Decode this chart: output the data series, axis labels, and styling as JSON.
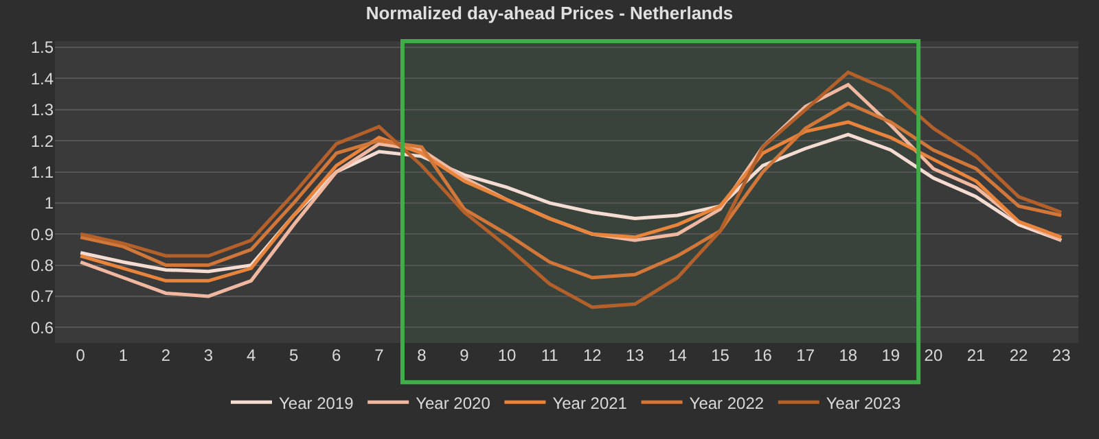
{
  "chart_data": {
    "type": "line",
    "title": "Normalized day-ahead Prices - Netherlands",
    "x": [
      0,
      1,
      2,
      3,
      4,
      5,
      6,
      7,
      8,
      9,
      10,
      11,
      12,
      13,
      14,
      15,
      16,
      17,
      18,
      19,
      20,
      21,
      22,
      23
    ],
    "xlim": [
      -0.6,
      23.4
    ],
    "xticks": [
      0,
      1,
      2,
      3,
      4,
      5,
      6,
      7,
      8,
      9,
      10,
      11,
      12,
      13,
      14,
      15,
      16,
      17,
      18,
      19,
      20,
      21,
      22,
      23
    ],
    "ylim": [
      0.55,
      1.52
    ],
    "yticks": [
      0.6,
      0.7,
      0.8,
      0.9,
      1,
      1.1,
      1.2,
      1.3,
      1.4,
      1.5
    ],
    "grid": "y",
    "legend": "bottom",
    "marker": "none",
    "line_style": "solid",
    "series": [
      {
        "name": "Year 2019",
        "color": "#f4dcd2",
        "values": [
          0.84,
          0.81,
          0.785,
          0.78,
          0.8,
          0.96,
          1.1,
          1.165,
          1.15,
          1.09,
          1.05,
          1.0,
          0.97,
          0.95,
          0.96,
          0.99,
          1.12,
          1.175,
          1.22,
          1.17,
          1.08,
          1.02,
          0.93,
          0.88
        ]
      },
      {
        "name": "Year 2020",
        "color": "#f0b8a0",
        "values": [
          0.81,
          0.76,
          0.71,
          0.7,
          0.75,
          0.93,
          1.1,
          1.19,
          1.17,
          1.08,
          1.01,
          0.95,
          0.9,
          0.88,
          0.9,
          0.98,
          1.18,
          1.31,
          1.38,
          1.25,
          1.11,
          1.05,
          0.94,
          0.88
        ]
      },
      {
        "name": "Year 2021",
        "color": "#e8843c",
        "values": [
          0.83,
          0.79,
          0.75,
          0.75,
          0.79,
          0.96,
          1.12,
          1.21,
          1.16,
          1.07,
          1.01,
          0.95,
          0.9,
          0.89,
          0.93,
          0.99,
          1.16,
          1.23,
          1.26,
          1.21,
          1.14,
          1.07,
          0.94,
          0.89
        ]
      },
      {
        "name": "Year 2022",
        "color": "#d2773a",
        "values": [
          0.89,
          0.86,
          0.8,
          0.8,
          0.85,
          1.0,
          1.16,
          1.2,
          1.18,
          0.98,
          0.9,
          0.81,
          0.76,
          0.77,
          0.83,
          0.91,
          1.1,
          1.24,
          1.32,
          1.26,
          1.17,
          1.11,
          0.99,
          0.96
        ]
      },
      {
        "name": "Year 2023",
        "color": "#b3602a",
        "values": [
          0.9,
          0.87,
          0.83,
          0.83,
          0.88,
          1.03,
          1.19,
          1.245,
          1.12,
          0.97,
          0.86,
          0.74,
          0.665,
          0.675,
          0.76,
          0.91,
          1.18,
          1.3,
          1.42,
          1.36,
          1.24,
          1.15,
          1.02,
          0.97
        ]
      }
    ],
    "bands": [
      {
        "axis": "x",
        "from": 7.55,
        "to": 19.65,
        "color": "#3fae49"
      }
    ]
  }
}
